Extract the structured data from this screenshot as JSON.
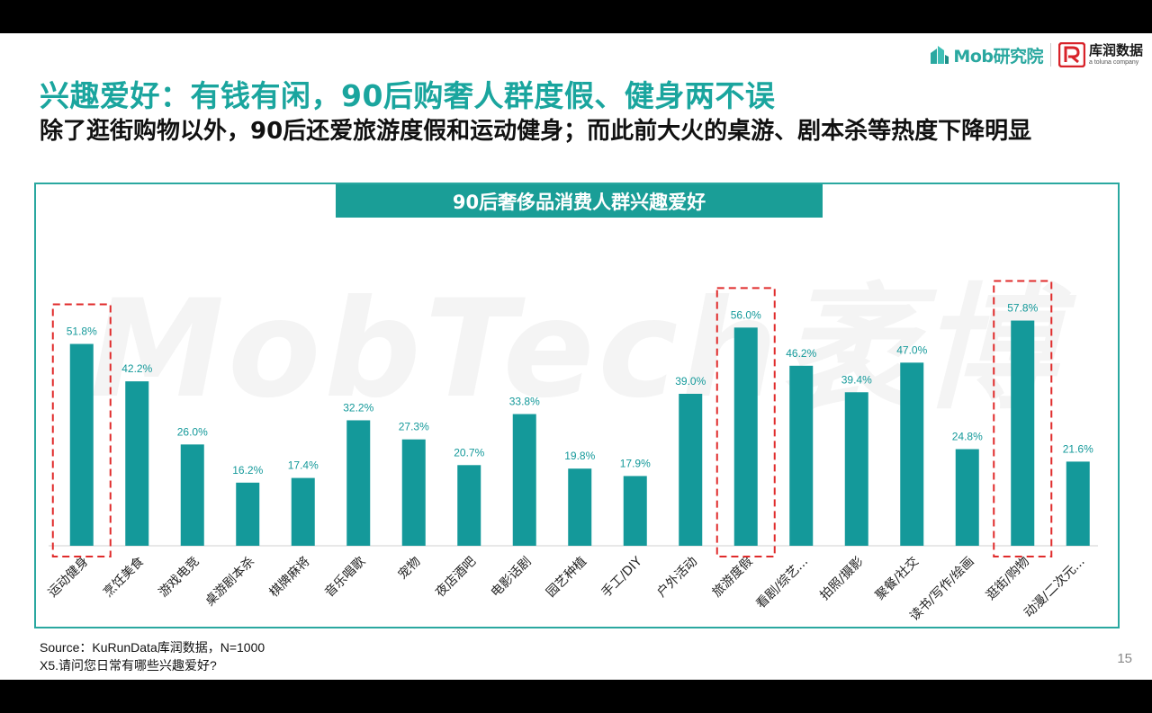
{
  "slide": {
    "title": "兴趣爱好：有钱有闲，90后购奢人群度假、健身两不误",
    "subtitle": "除了逛街购物以外，90后还爱旅游度假和运动健身；而此前大火的桌游、剧本杀等热度下降明显",
    "watermark": "MobTech袤博",
    "source": "Source：KuRunData库润数据，N=1000",
    "question": "X5.请问您日常有哪些兴趣爱好?",
    "page_number": "15"
  },
  "logos": {
    "mob": "Mob研究院",
    "kurun": "库润数据",
    "kurun_sub": "a toluna company",
    "mob_color": "#2aa8a0",
    "kurun_color": "#d8232a"
  },
  "colors": {
    "bar": "#14999a",
    "highlight_box": "#e02b2b",
    "title": "#1aa59e",
    "banner": "#1a9e97"
  },
  "chart_data": {
    "type": "bar",
    "title": "90后奢侈品消费人群兴趣爱好",
    "categories": [
      "运动健身",
      "烹饪美食",
      "游戏电竞",
      "桌游剧本杀",
      "棋牌麻将",
      "音乐唱歌",
      "宠物",
      "夜店酒吧",
      "电影话剧",
      "园艺种植",
      "手工/DIY",
      "户外活动",
      "旅游度假",
      "看剧/综艺...",
      "拍照/摄影",
      "聚餐/社交",
      "读书/写作/绘画",
      "逛街/购物",
      "动漫/二次元..."
    ],
    "values": [
      51.8,
      42.2,
      26.0,
      16.2,
      17.4,
      32.2,
      27.3,
      20.7,
      33.8,
      19.8,
      17.9,
      39.0,
      56.0,
      46.2,
      39.4,
      47.0,
      24.8,
      57.8,
      21.6
    ],
    "value_labels": [
      "51.8%",
      "42.2%",
      "26.0%",
      "16.2%",
      "17.4%",
      "32.2%",
      "27.3%",
      "20.7%",
      "33.8%",
      "19.8%",
      "17.9%",
      "39.0%",
      "56.0%",
      "46.2%",
      "39.4%",
      "47.0%",
      "24.8%",
      "57.8%",
      "21.6%"
    ],
    "highlighted": [
      "运动健身",
      "旅游度假",
      "逛街/购物"
    ],
    "ylim": [
      0,
      60
    ],
    "grid": false,
    "legend": "none"
  }
}
